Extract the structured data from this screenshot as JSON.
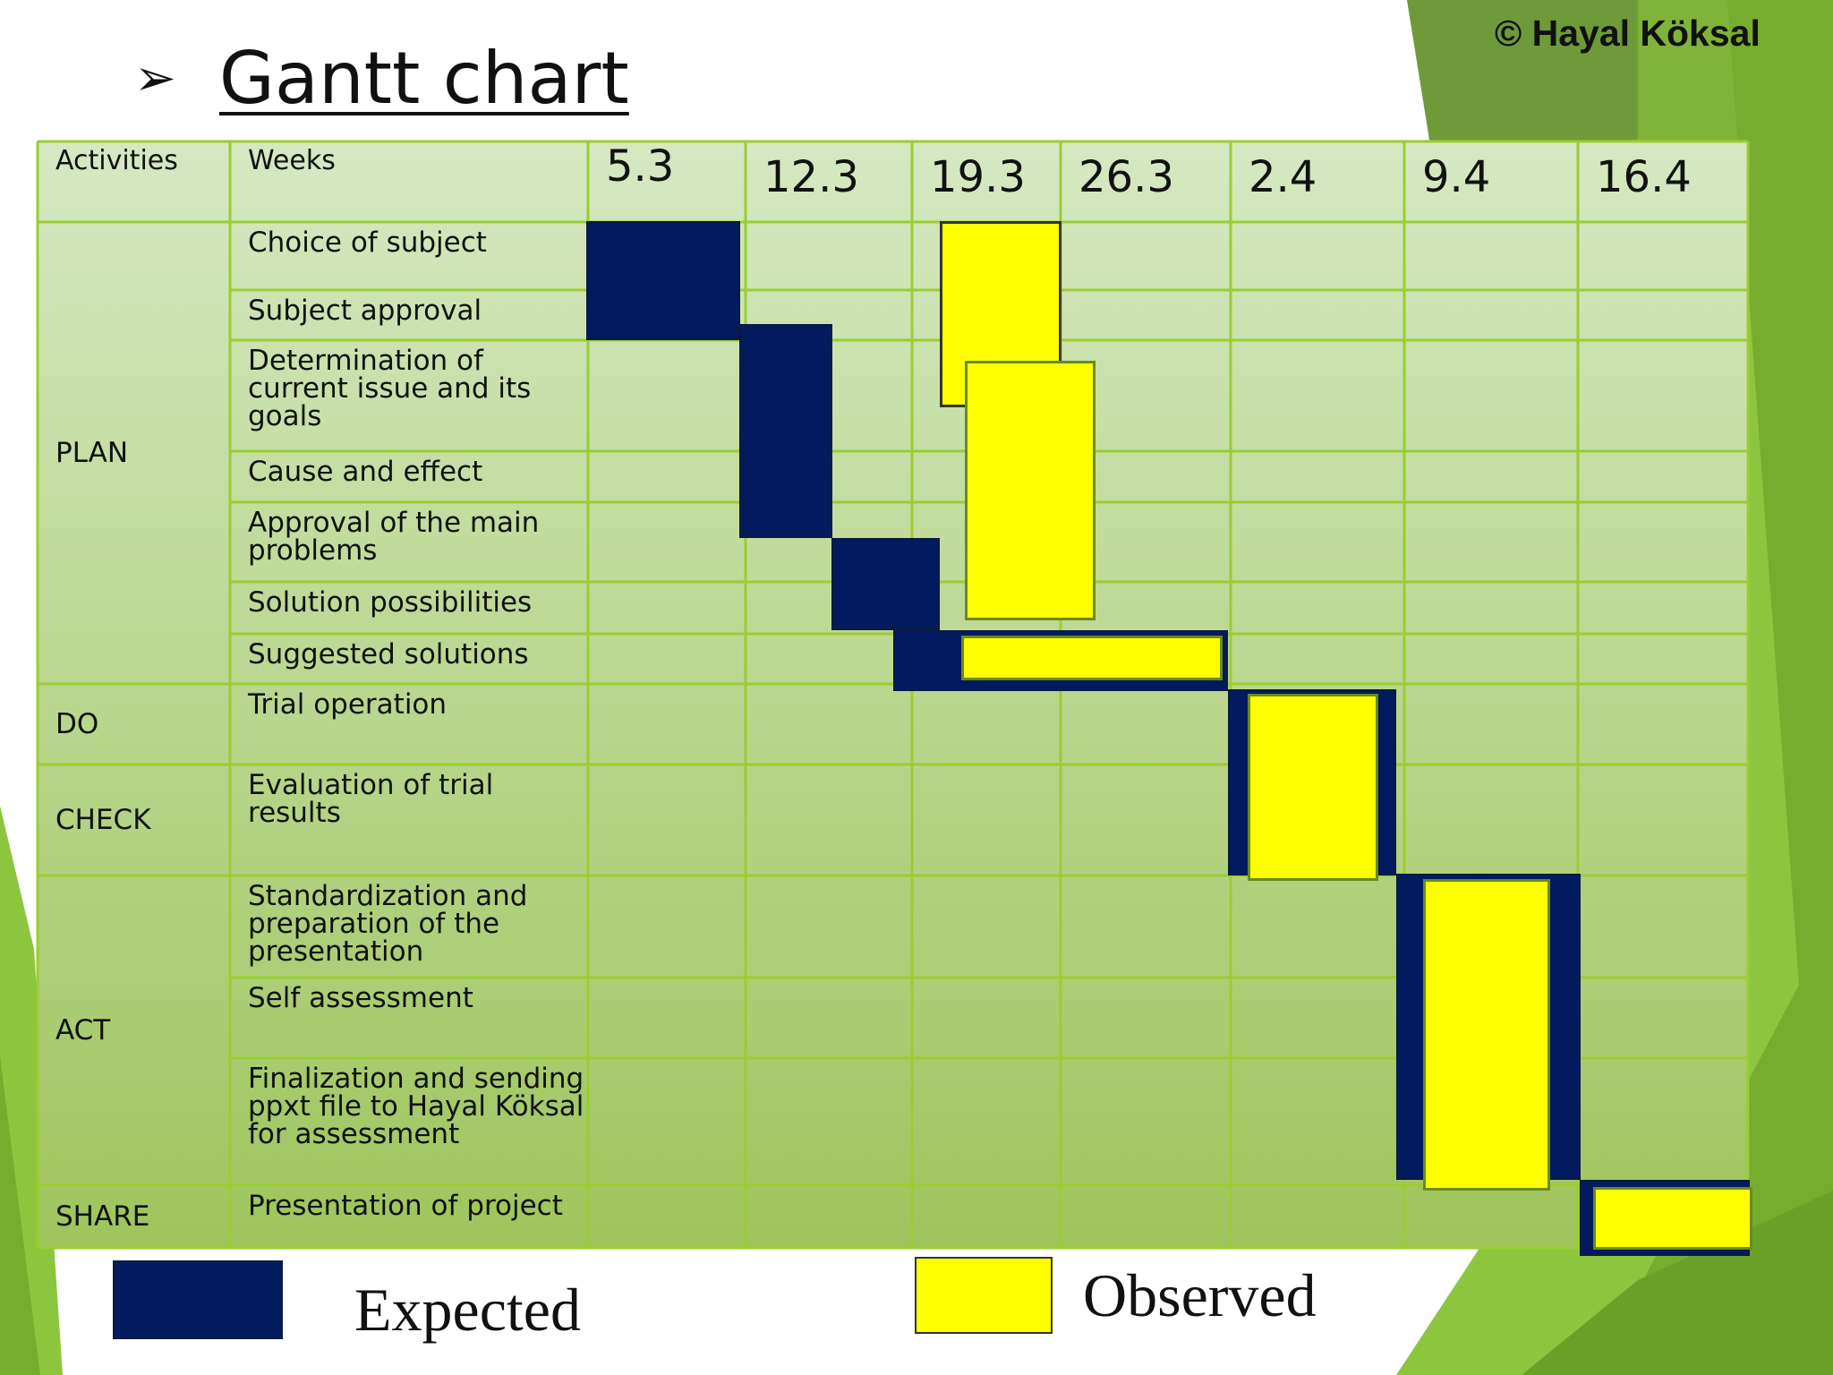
{
  "title": "Gantt chart",
  "copyright": "© Hayal Köksal",
  "icons": {
    "title_bullet": "arrowhead-bullet-icon"
  },
  "colors": {
    "expected": "#021b5e",
    "observed": "#ffff00",
    "grid": "#9acd32",
    "green_dark": "#6e9a3a",
    "green_light": "#8cc63f"
  },
  "chart_data": {
    "type": "gantt",
    "header": {
      "activities": "Activities",
      "weeks": "Weeks"
    },
    "weeks": [
      "5.3",
      "12.3",
      "19.3",
      "26.3",
      "2.4",
      "9.4",
      "16.4"
    ],
    "phases": [
      {
        "name": "PLAN",
        "activities": [
          "Choice of subject",
          "Subject  approval",
          "Determination of current issue and its goals",
          "Cause and effect",
          "Approval of the main problems",
          "Solution possibilities",
          "Suggested solutions"
        ]
      },
      {
        "name": "DO",
        "activities": [
          "Trial operation"
        ]
      },
      {
        "name": "CHECK",
        "activities": [
          "Evaluation of trial results"
        ]
      },
      {
        "name": "ACT",
        "activities": [
          "Standardization and preparation of  the presentation",
          "Self assessment",
          "Finalization and sending  ppxt  file to Hayal Köksal for assessment"
        ]
      },
      {
        "name": "SHARE",
        "activities": [
          "Presentation of project"
        ]
      }
    ],
    "series": [
      {
        "name": "Expected",
        "tasks": [
          {
            "activities": [
              "Choice of subject",
              "Subject  approval"
            ],
            "weeks": [
              "5.3"
            ]
          },
          {
            "activities": [
              "Determination of current issue and its goals",
              "Cause and effect",
              "Approval of the main problems"
            ],
            "weeks": [
              "12.3"
            ]
          },
          {
            "activities": [
              "Solution possibilities"
            ],
            "weeks": [
              "12.3",
              "19.3"
            ]
          },
          {
            "activities": [
              "Suggested solutions"
            ],
            "weeks": [
              "19.3",
              "26.3"
            ]
          },
          {
            "activities": [
              "Trial operation",
              "Evaluation of trial results"
            ],
            "weeks": [
              "2.4"
            ]
          },
          {
            "activities": [
              "Standardization and preparation of  the presentation",
              "Self assessment",
              "Finalization and sending  ppxt  file to Hayal Köksal for assessment"
            ],
            "weeks": [
              "9.4"
            ]
          },
          {
            "activities": [
              "Presentation of project"
            ],
            "weeks": [
              "16.4"
            ]
          }
        ]
      },
      {
        "name": "Observed",
        "tasks": [
          {
            "activities": [
              "Choice of subject",
              "Subject  approval",
              "Determination of current issue and its goals"
            ],
            "weeks": [
              "19.3"
            ]
          },
          {
            "activities": [
              "Determination of current issue and its goals",
              "Cause and effect",
              "Approval of the main problems",
              "Solution possibilities"
            ],
            "weeks": [
              "19.3"
            ]
          },
          {
            "activities": [
              "Suggested solutions"
            ],
            "weeks": [
              "19.3",
              "26.3"
            ]
          },
          {
            "activities": [
              "Trial operation",
              "Evaluation of trial results"
            ],
            "weeks": [
              "2.4"
            ]
          },
          {
            "activities": [
              "Standardization and preparation of  the presentation",
              "Self assessment",
              "Finalization and sending  ppxt  file to Hayal Köksal for assessment"
            ],
            "weeks": [
              "9.4"
            ]
          },
          {
            "activities": [
              "Presentation of project"
            ],
            "weeks": [
              "16.4"
            ]
          }
        ]
      }
    ],
    "legend": {
      "position": "bottom",
      "entries": [
        "Expected",
        "Observed"
      ]
    }
  }
}
